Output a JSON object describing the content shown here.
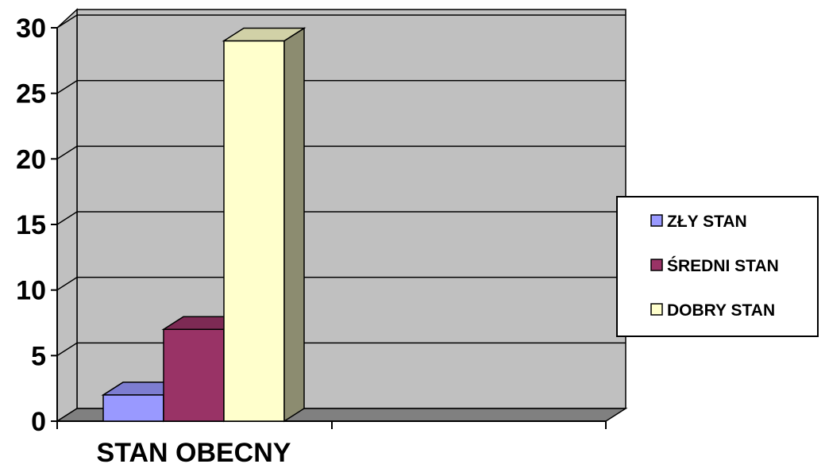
{
  "chart_data": {
    "type": "bar",
    "style": "3d-clustered-column",
    "categories": [
      "STAN OBECNY"
    ],
    "series": [
      {
        "name": "ZŁY STAN",
        "values": [
          2
        ],
        "color": "#9999ff"
      },
      {
        "name": "ŚREDNI STAN",
        "values": [
          7
        ],
        "color": "#993366"
      },
      {
        "name": "DOBRY STAN",
        "values": [
          29
        ],
        "color": "#ffffcc"
      }
    ],
    "yticks": [
      "0",
      "5",
      "10",
      "15",
      "20",
      "25",
      "30"
    ],
    "ylim": [
      0,
      30
    ],
    "grid": true,
    "legend_position": "right",
    "plot_background": "#c0c0c0",
    "floor_color": "#808080"
  }
}
